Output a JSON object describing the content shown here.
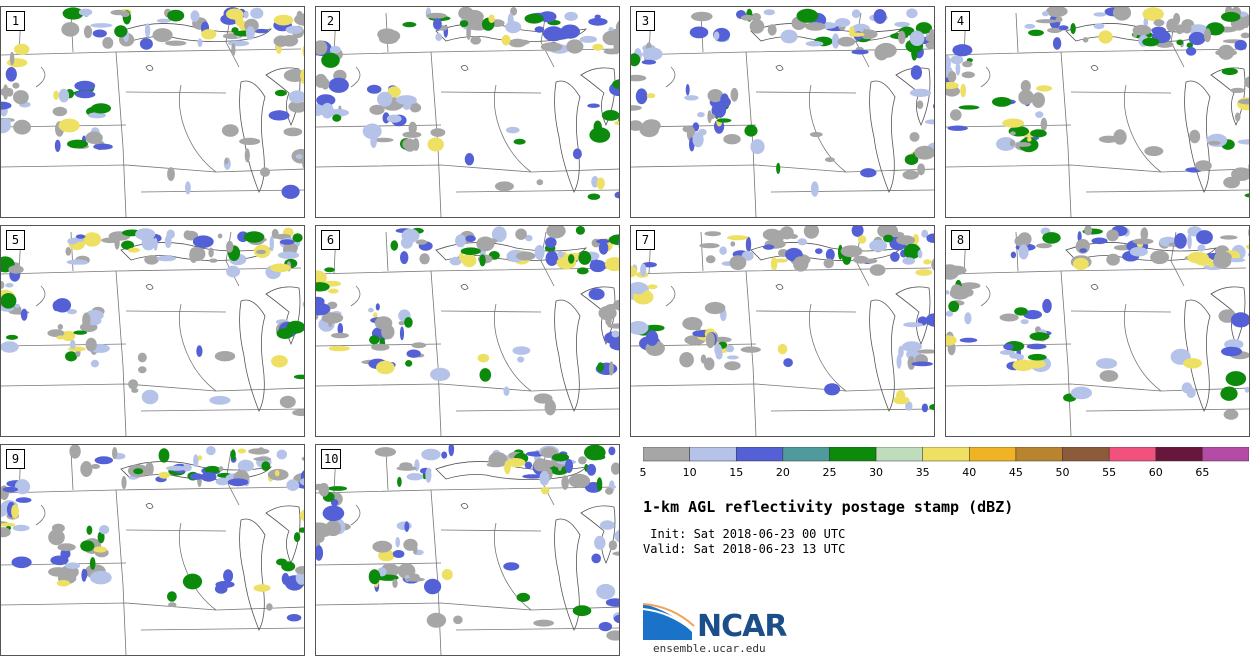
{
  "panels": [
    {
      "label": "1"
    },
    {
      "label": "2"
    },
    {
      "label": "3"
    },
    {
      "label": "4"
    },
    {
      "label": "5"
    },
    {
      "label": "6"
    },
    {
      "label": "7"
    },
    {
      "label": "8"
    },
    {
      "label": "9"
    },
    {
      "label": "10"
    }
  ],
  "colorbar": {
    "colors": [
      "#a6a6a6",
      "#b6c3e8",
      "#5360d6",
      "#4e9a9c",
      "#0b8a0b",
      "#bfdcbc",
      "#ede062",
      "#f0b323",
      "#b9842e",
      "#8c5b3a",
      "#f2507d",
      "#68163c",
      "#b44ca6"
    ],
    "tick_labels": [
      "5",
      "10",
      "15",
      "20",
      "25",
      "30",
      "35",
      "40",
      "45",
      "50",
      "55",
      "60",
      "65"
    ]
  },
  "title": "1-km AGL reflectivity postage stamp (dBZ)",
  "init_line": " Init: Sat 2018-06-23 00 UTC",
  "valid_line": "Valid: Sat 2018-06-23 13 UTC",
  "logo": {
    "text": "NCAR",
    "icon": "ncar-logo-icon"
  },
  "website": "ensemble.ucar.edu"
}
